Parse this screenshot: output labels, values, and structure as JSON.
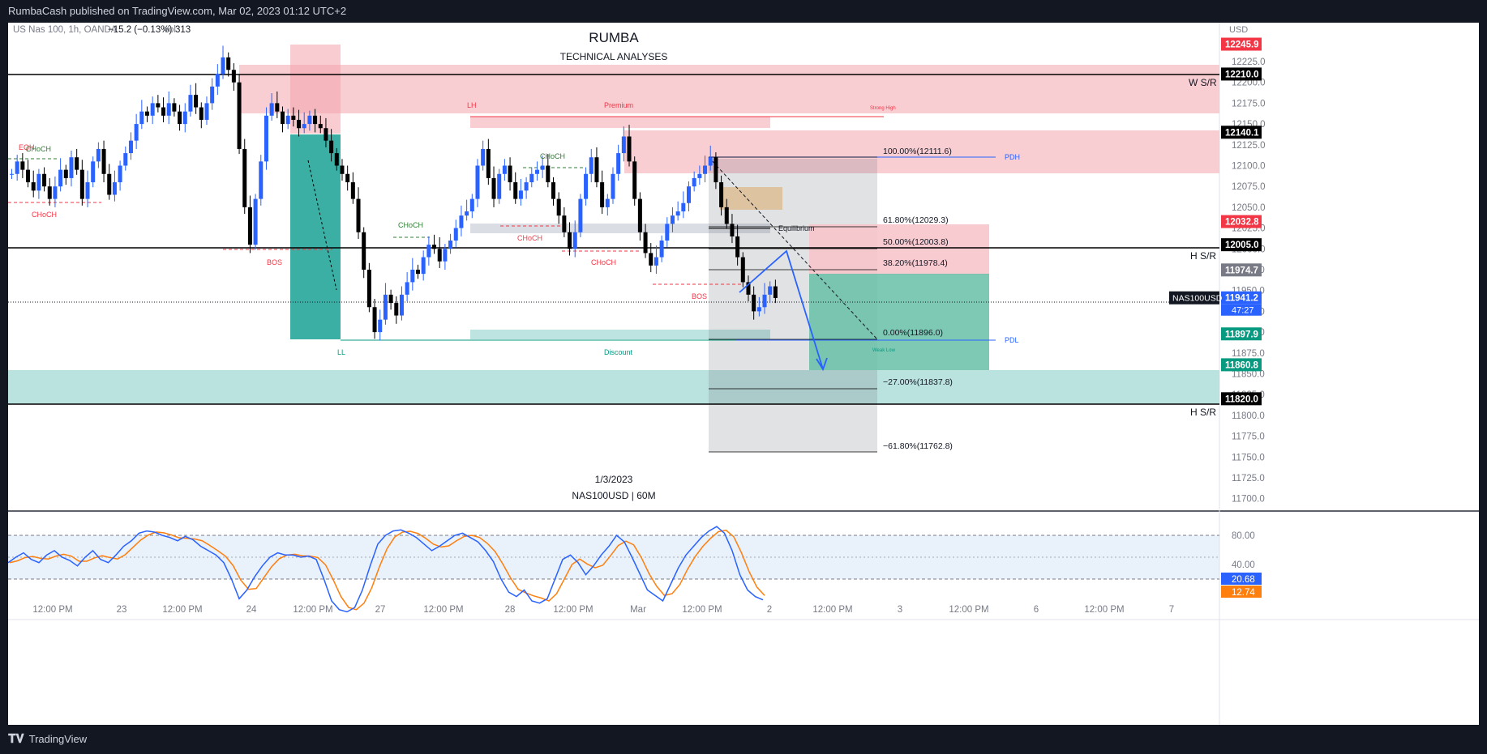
{
  "header": {
    "publish_line": "RumbaCash published on TradingView.com, Mar 02, 2023 01:12 UTC+2"
  },
  "legend": {
    "symbol": "US Nas 100, 1h, OANDA",
    "change": "−15.2 (−0.13%)",
    "volume_label": "Vol",
    "volume_value": "313"
  },
  "title": "RUMBA",
  "subtitle": "TECHNICAL ANALYSES",
  "watermark": {
    "date": "1/3/2023",
    "symbol_tf": "NAS100USD | 60M"
  },
  "currency": "USD",
  "price_scale": {
    "ticks": [
      "12225.0",
      "12200.0",
      "12175.0",
      "12150.0",
      "12125.0",
      "12100.0",
      "12075.0",
      "12050.0",
      "12025.0",
      "12000.0",
      "11975.0",
      "11950.0",
      "11925.0",
      "11900.0",
      "11875.0",
      "11850.0",
      "11825.0",
      "11800.0",
      "11775.0",
      "11750.0",
      "11725.0",
      "11700.0"
    ],
    "tags": [
      {
        "text": "12245.9",
        "color": "#f23645"
      },
      {
        "text": "12210.0",
        "color": "#000000"
      },
      {
        "text": "12140.1",
        "color": "#000000"
      },
      {
        "text": "12032.8",
        "color": "#f23645"
      },
      {
        "text": "12005.0",
        "color": "#000000"
      },
      {
        "text": "11974.7",
        "color": "#787b86"
      },
      {
        "text": "11941.2",
        "color": "#2962ff"
      },
      {
        "text": "11897.9",
        "color": "#089981"
      },
      {
        "text": "11860.8",
        "color": "#089981"
      },
      {
        "text": "11820.0",
        "color": "#000000"
      }
    ],
    "last_price_label": "NAS100USD",
    "countdown": "47:27"
  },
  "time_axis": [
    "12:00 PM",
    "23",
    "12:00 PM",
    "24",
    "12:00 PM",
    "27",
    "12:00 PM",
    "28",
    "12:00 PM",
    "Mar",
    "12:00 PM",
    "2",
    "12:00 PM",
    "3",
    "12:00 PM",
    "6",
    "12:00 PM",
    "7"
  ],
  "osc_scale": {
    "ticks": [
      "80.00",
      "40.00"
    ],
    "tag_k": "20.68",
    "tag_d": "12.74"
  },
  "annotations": {
    "ws_r": "W S/R",
    "hs_r_1": "H S/R",
    "hs_r_2": "H S/R",
    "eqh": "EQH",
    "choch": "CHoCH",
    "bos": "BOS",
    "lh": "LH",
    "ll": "LL",
    "premium": "Premium",
    "discount": "Discount",
    "equilibrium": "Equilibrium",
    "strong_high": "Strong High",
    "weak_low": "Weak Low",
    "pdh": "PDH",
    "pdl": "PDL"
  },
  "fib_levels": [
    "100.00%(12111.6)",
    "61.80%(12029.3)",
    "50.00%(12003.8)",
    "38.20%(11978.4)",
    "0.00%(11896.0)",
    "−27.00%(11837.8)",
    "−61.80%(11762.8)"
  ],
  "footer": {
    "brand": "TradingView"
  },
  "colors": {
    "bull": "#2962ff",
    "bear": "#000000",
    "premium_zone": "#f7c5cb",
    "discount_zone": "#b2dfdb",
    "stoch_k": "#2962ff",
    "stoch_d": "#ff7f0e"
  }
}
